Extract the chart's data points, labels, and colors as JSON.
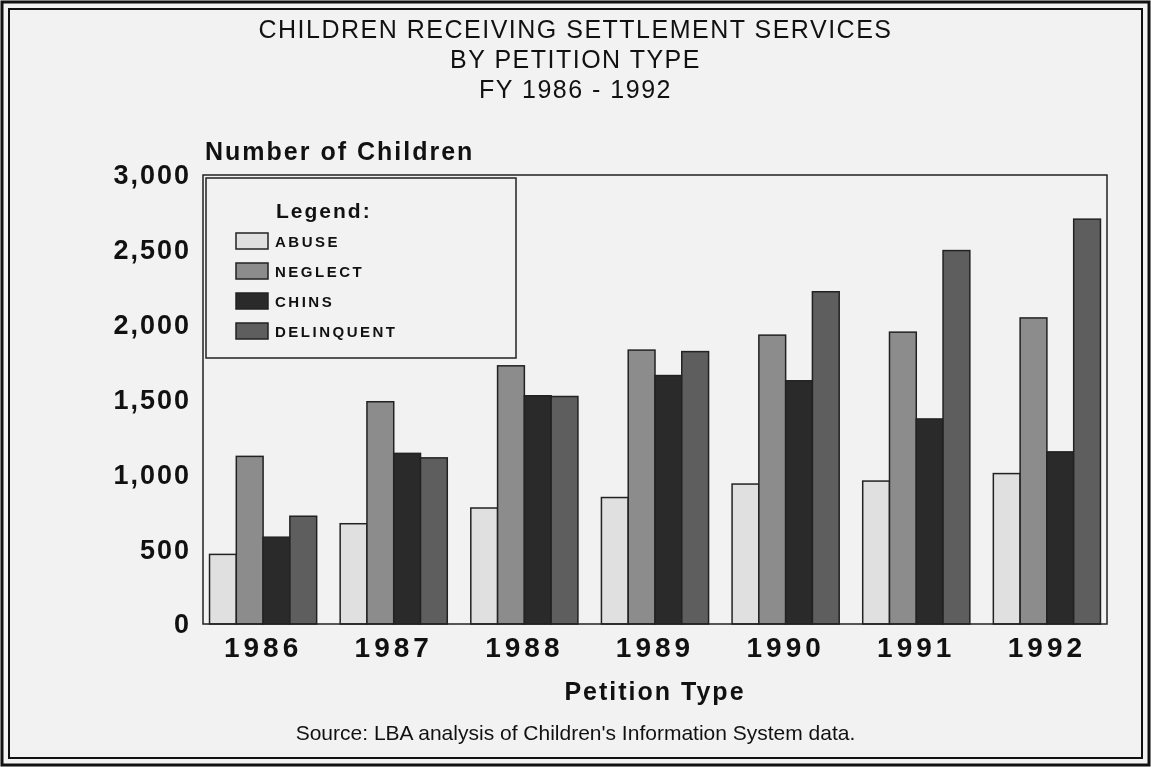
{
  "chart_data": {
    "type": "bar",
    "title": "CHILDREN RECEIVING SETTLEMENT SERVICES\nBY PETITION TYPE",
    "subtitle": "FY 1986 - 1992",
    "ylabel": "Number of Children",
    "xlabel": "Petition Type",
    "legend_title": "Legend:",
    "legend": "top left",
    "annotations": [
      "Source:  LBA analysis of Children's Information System data."
    ],
    "categories": [
      "1986",
      "1987",
      "1988",
      "1989",
      "1990",
      "1991",
      "1992"
    ],
    "series": [
      {
        "name": "ABUSE",
        "color": "#e0e0e0",
        "values": [
          465,
          670,
          775,
          845,
          935,
          955,
          1005
        ]
      },
      {
        "name": "NEGLECT",
        "color": "#8c8c8c",
        "values": [
          1120,
          1485,
          1725,
          1830,
          1930,
          1950,
          2045
        ]
      },
      {
        "name": "CHINS",
        "color": "#2a2a2a",
        "values": [
          580,
          1140,
          1525,
          1660,
          1625,
          1370,
          1150
        ]
      },
      {
        "name": "DELINQUENT",
        "color": "#5e5e5e",
        "values": [
          720,
          1110,
          1520,
          1820,
          2220,
          2495,
          2705
        ]
      }
    ],
    "ylim": [
      0,
      3000
    ],
    "yticks": [
      0,
      500,
      {
        "value": 1000,
        "label": "1,000"
      },
      {
        "value": 1500,
        "label": "1,500"
      },
      {
        "value": 2000,
        "label": "2,000"
      },
      {
        "value": 2500,
        "label": "2,500"
      },
      {
        "value": 3000,
        "label": "3,000"
      }
    ],
    "grid": false
  }
}
